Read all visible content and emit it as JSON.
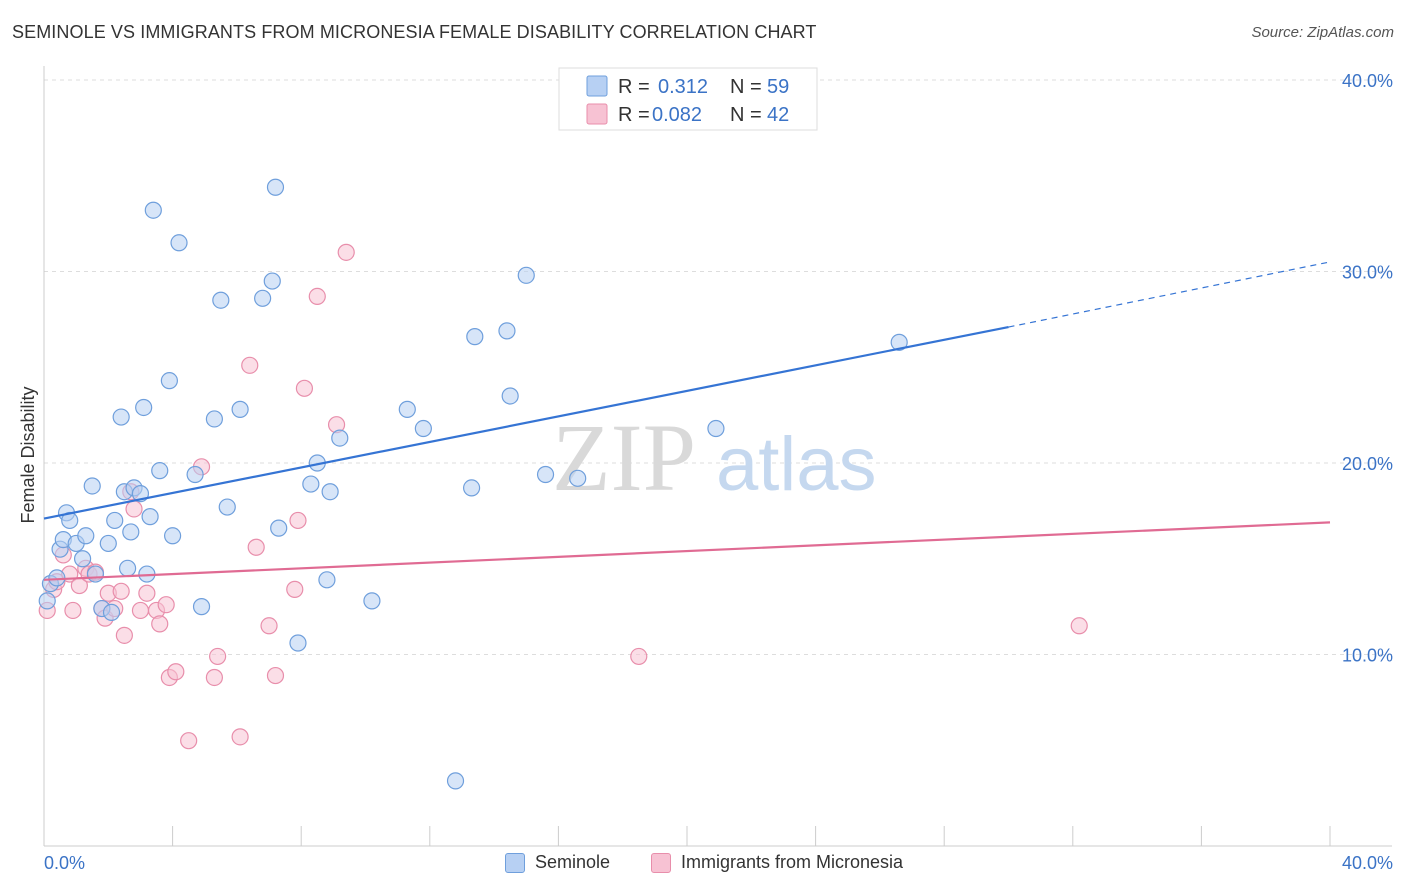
{
  "title": "SEMINOLE VS IMMIGRANTS FROM MICRONESIA FEMALE DISABILITY CORRELATION CHART",
  "source": "Source: ZipAtlas.com",
  "watermark": {
    "zip": "ZIP",
    "atlas": "atlas"
  },
  "colors": {
    "blue_fill": "#b7d0f3",
    "blue_stroke": "#6f9fdc",
    "blue_line": "#3574d4",
    "pink_fill": "#f7c2d3",
    "pink_stroke": "#e88eab",
    "pink_line": "#e06b93",
    "axis_label": "#3b73c6",
    "grid": "#dddddd"
  },
  "legend_top": [
    {
      "r_label": "R = ",
      "r_value": "0.312",
      "n_label": "N = ",
      "n_value": "59"
    },
    {
      "r_label": "R = ",
      "r_value": "0.082",
      "n_label": "N = ",
      "n_value": "42"
    }
  ],
  "legend_bottom": [
    "Seminole",
    "Immigrants from Micronesia"
  ],
  "chart_data": {
    "type": "scatter",
    "title": "SEMINOLE VS IMMIGRANTS FROM MICRONESIA FEMALE DISABILITY CORRELATION CHART",
    "xlabel": "",
    "ylabel": "Female Disability",
    "xlim": [
      0,
      40
    ],
    "ylim": [
      0,
      40
    ],
    "x_tick_labels": [
      "0.0%",
      "40.0%"
    ],
    "y_ticks": [
      10,
      20,
      30,
      40
    ],
    "y_tick_labels": [
      "10.0%",
      "20.0%",
      "30.0%",
      "40.0%"
    ],
    "grid": true,
    "legend_position": "top-center",
    "series": [
      {
        "name": "Seminole",
        "r": 0.312,
        "n": 59,
        "trend": {
          "x0": 0,
          "y0": 17.1,
          "x1": 30,
          "y1": 27.1,
          "dashed_to_x": 40,
          "dashed_to_y": 30.5
        },
        "points": [
          [
            0.2,
            13.7
          ],
          [
            0.4,
            14.0
          ],
          [
            0.5,
            15.5
          ],
          [
            0.6,
            16.0
          ],
          [
            0.7,
            17.4
          ],
          [
            0.8,
            17.0
          ],
          [
            1.0,
            15.8
          ],
          [
            1.2,
            15.0
          ],
          [
            1.3,
            16.2
          ],
          [
            1.5,
            18.8
          ],
          [
            1.6,
            14.2
          ],
          [
            1.8,
            12.4
          ],
          [
            2.0,
            15.8
          ],
          [
            2.1,
            12.2
          ],
          [
            2.2,
            17.0
          ],
          [
            2.4,
            22.4
          ],
          [
            2.5,
            18.5
          ],
          [
            2.6,
            14.5
          ],
          [
            2.7,
            16.4
          ],
          [
            2.8,
            18.7
          ],
          [
            3.0,
            18.4
          ],
          [
            3.1,
            22.9
          ],
          [
            3.2,
            14.2
          ],
          [
            3.3,
            17.2
          ],
          [
            3.4,
            33.2
          ],
          [
            3.6,
            19.6
          ],
          [
            3.9,
            24.3
          ],
          [
            4.0,
            16.2
          ],
          [
            4.2,
            31.5
          ],
          [
            4.7,
            19.4
          ],
          [
            4.9,
            12.5
          ],
          [
            5.3,
            22.3
          ],
          [
            5.5,
            28.5
          ],
          [
            5.7,
            17.7
          ],
          [
            6.1,
            22.8
          ],
          [
            6.8,
            28.6
          ],
          [
            7.1,
            29.5
          ],
          [
            7.2,
            34.4
          ],
          [
            7.3,
            16.6
          ],
          [
            7.9,
            10.6
          ],
          [
            8.3,
            18.9
          ],
          [
            8.5,
            20.0
          ],
          [
            8.8,
            13.9
          ],
          [
            8.9,
            18.5
          ],
          [
            9.2,
            21.3
          ],
          [
            10.2,
            12.8
          ],
          [
            11.3,
            22.8
          ],
          [
            11.8,
            21.8
          ],
          [
            12.8,
            3.4
          ],
          [
            13.3,
            18.7
          ],
          [
            13.4,
            26.6
          ],
          [
            14.4,
            26.9
          ],
          [
            14.5,
            23.5
          ],
          [
            15.0,
            29.8
          ],
          [
            15.6,
            19.4
          ],
          [
            16.6,
            19.2
          ],
          [
            20.9,
            21.8
          ],
          [
            26.6,
            26.3
          ],
          [
            0.1,
            12.8
          ]
        ]
      },
      {
        "name": "Immigrants from Micronesia",
        "r": 0.082,
        "n": 42,
        "trend": {
          "x0": 0,
          "y0": 13.9,
          "x1": 40,
          "y1": 16.9
        },
        "points": [
          [
            0.1,
            12.3
          ],
          [
            0.3,
            13.4
          ],
          [
            0.4,
            13.8
          ],
          [
            0.6,
            15.2
          ],
          [
            0.8,
            14.2
          ],
          [
            0.9,
            12.3
          ],
          [
            1.1,
            13.6
          ],
          [
            1.3,
            14.5
          ],
          [
            1.4,
            14.2
          ],
          [
            1.6,
            14.3
          ],
          [
            1.8,
            12.4
          ],
          [
            1.9,
            11.9
          ],
          [
            2.0,
            13.2
          ],
          [
            2.2,
            12.4
          ],
          [
            2.4,
            13.3
          ],
          [
            2.5,
            11.0
          ],
          [
            2.7,
            18.5
          ],
          [
            2.8,
            17.6
          ],
          [
            3.0,
            12.3
          ],
          [
            3.2,
            13.2
          ],
          [
            3.5,
            12.3
          ],
          [
            3.6,
            11.6
          ],
          [
            3.8,
            12.6
          ],
          [
            3.9,
            8.8
          ],
          [
            4.1,
            9.1
          ],
          [
            4.5,
            5.5
          ],
          [
            4.9,
            19.8
          ],
          [
            5.3,
            8.8
          ],
          [
            5.4,
            9.9
          ],
          [
            6.1,
            5.7
          ],
          [
            6.4,
            25.1
          ],
          [
            6.6,
            15.6
          ],
          [
            7.0,
            11.5
          ],
          [
            7.2,
            8.9
          ],
          [
            7.8,
            13.4
          ],
          [
            7.9,
            17.0
          ],
          [
            8.1,
            23.9
          ],
          [
            8.5,
            28.7
          ],
          [
            9.1,
            22.0
          ],
          [
            9.4,
            31.0
          ],
          [
            18.5,
            9.9
          ],
          [
            32.2,
            11.5
          ]
        ]
      }
    ]
  }
}
